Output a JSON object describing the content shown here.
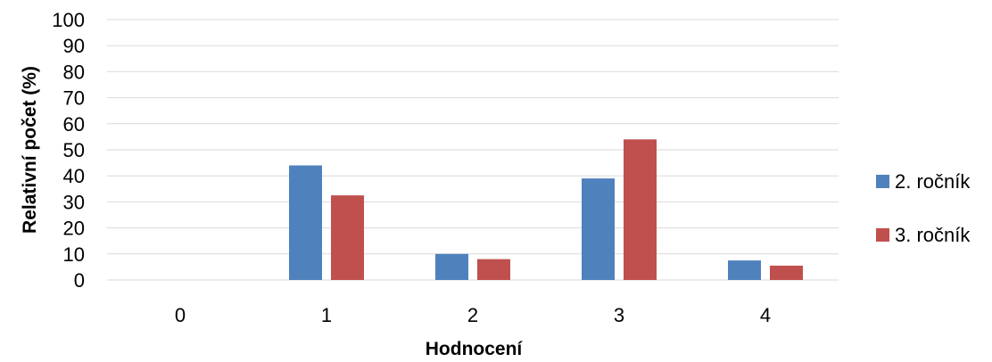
{
  "chart_data": {
    "type": "bar",
    "categories": [
      "0",
      "1",
      "2",
      "3",
      "4"
    ],
    "series": [
      {
        "name": "2. ročník",
        "color": "#4f81bd",
        "values": [
          0,
          44,
          10,
          39,
          7.5
        ]
      },
      {
        "name": "3. ročník",
        "color": "#c0504d",
        "values": [
          0,
          32.5,
          8,
          54,
          5.5
        ]
      }
    ],
    "xlabel": "Hodnocení",
    "ylabel": "Relativní počet (%)",
    "ylim": [
      0,
      100
    ],
    "yticks": [
      0,
      10,
      20,
      30,
      40,
      50,
      60,
      70,
      80,
      90,
      100
    ],
    "grid": true,
    "legend": "right"
  }
}
